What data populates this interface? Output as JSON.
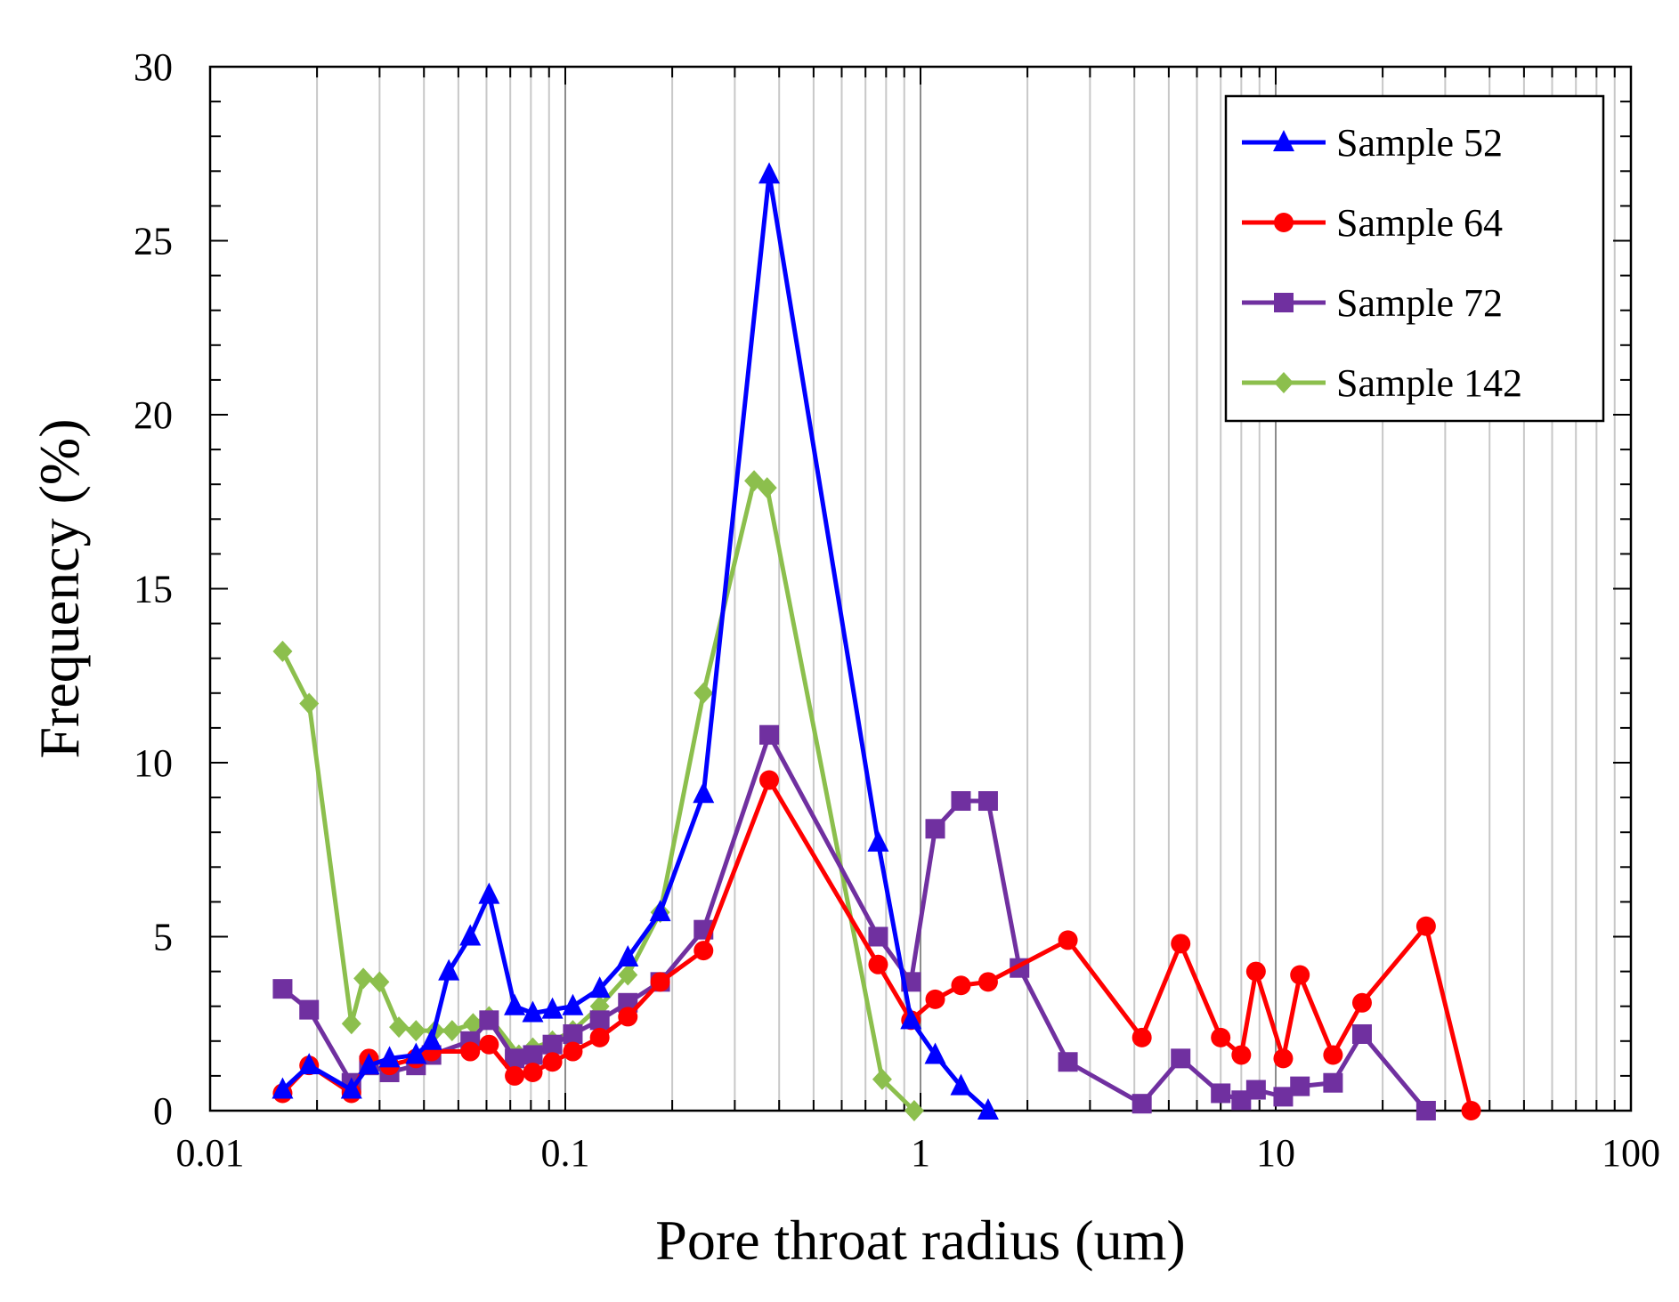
{
  "chart_data": {
    "type": "line",
    "title": "",
    "xlabel": "Pore throat radius (um)",
    "ylabel": "Frequency (%)",
    "xscale": "log",
    "xlim": [
      0.01,
      100
    ],
    "ylim": [
      0,
      30
    ],
    "x_ticks": [
      0.01,
      0.1,
      1,
      10,
      100
    ],
    "x_tick_labels": [
      "0.01",
      "0.1",
      "1",
      "10",
      "100"
    ],
    "y_ticks": [
      0,
      5,
      10,
      15,
      20,
      25,
      30
    ],
    "y_tick_labels": [
      "0",
      "5",
      "10",
      "15",
      "20",
      "25",
      "30"
    ],
    "grid": "vertical",
    "legend_position": "top-right",
    "series": [
      {
        "name": "Sample 52",
        "color": "#0000ff",
        "marker": "triangle",
        "x": [
          0.016,
          0.019,
          0.025,
          0.028,
          0.032,
          0.038,
          0.042,
          0.047,
          0.054,
          0.061,
          0.072,
          0.081,
          0.092,
          0.105,
          0.125,
          0.15,
          0.185,
          0.245,
          0.375,
          0.76,
          0.94,
          1.1,
          1.3,
          1.55
        ],
        "y": [
          0.6,
          1.3,
          0.6,
          1.3,
          1.5,
          1.6,
          2.0,
          4.0,
          5.0,
          6.2,
          3.0,
          2.8,
          2.9,
          3.0,
          3.5,
          4.4,
          5.7,
          9.1,
          26.9,
          7.7,
          2.6,
          1.6,
          0.7,
          0.0
        ]
      },
      {
        "name": "Sample 64",
        "color": "#ff0000",
        "marker": "circle",
        "x": [
          0.016,
          0.019,
          0.025,
          0.028,
          0.032,
          0.038,
          0.042,
          0.054,
          0.061,
          0.072,
          0.081,
          0.092,
          0.105,
          0.125,
          0.15,
          0.185,
          0.245,
          0.375,
          0.76,
          0.94,
          1.1,
          1.3,
          1.55,
          2.6,
          4.2,
          5.4,
          7.0,
          8.0,
          8.8,
          10.5,
          11.7,
          14.5,
          17.5,
          26.5,
          35.5
        ],
        "y": [
          0.5,
          1.3,
          0.5,
          1.5,
          1.3,
          1.5,
          1.7,
          1.7,
          1.9,
          1.0,
          1.1,
          1.4,
          1.7,
          2.1,
          2.7,
          3.7,
          4.6,
          9.5,
          4.2,
          2.6,
          3.2,
          3.6,
          3.7,
          4.9,
          2.1,
          4.8,
          2.1,
          1.6,
          4.0,
          1.5,
          3.9,
          1.6,
          3.1,
          5.3,
          0.0
        ]
      },
      {
        "name": "Sample 72",
        "color": "#7030a0",
        "marker": "square",
        "x": [
          0.016,
          0.019,
          0.025,
          0.028,
          0.032,
          0.038,
          0.042,
          0.054,
          0.061,
          0.072,
          0.081,
          0.092,
          0.105,
          0.125,
          0.15,
          0.185,
          0.245,
          0.375,
          0.76,
          0.94,
          1.1,
          1.3,
          1.55,
          1.9,
          2.6,
          4.2,
          5.4,
          7.0,
          8.0,
          8.8,
          10.5,
          11.7,
          14.5,
          17.5,
          26.5
        ],
        "y": [
          3.5,
          2.9,
          0.8,
          1.3,
          1.1,
          1.3,
          1.6,
          2.0,
          2.6,
          1.5,
          1.6,
          1.9,
          2.2,
          2.6,
          3.1,
          3.7,
          5.2,
          10.8,
          5.0,
          3.7,
          8.1,
          8.9,
          8.9,
          4.1,
          1.4,
          0.2,
          1.5,
          0.5,
          0.3,
          0.6,
          0.4,
          0.7,
          0.8,
          2.2,
          0.0
        ]
      },
      {
        "name": "Sample 142",
        "color": "#8cbf4d",
        "marker": "diamond",
        "x": [
          0.016,
          0.019,
          0.025,
          0.027,
          0.03,
          0.034,
          0.038,
          0.043,
          0.048,
          0.055,
          0.061,
          0.074,
          0.081,
          0.092,
          0.105,
          0.125,
          0.15,
          0.185,
          0.245,
          0.34,
          0.37,
          0.78,
          0.96
        ],
        "y": [
          13.2,
          11.7,
          2.5,
          3.8,
          3.7,
          2.4,
          2.3,
          2.3,
          2.3,
          2.5,
          2.7,
          1.6,
          1.8,
          2.0,
          2.3,
          3.0,
          3.9,
          5.7,
          12.0,
          18.1,
          17.9,
          0.9,
          0.0
        ]
      }
    ]
  }
}
